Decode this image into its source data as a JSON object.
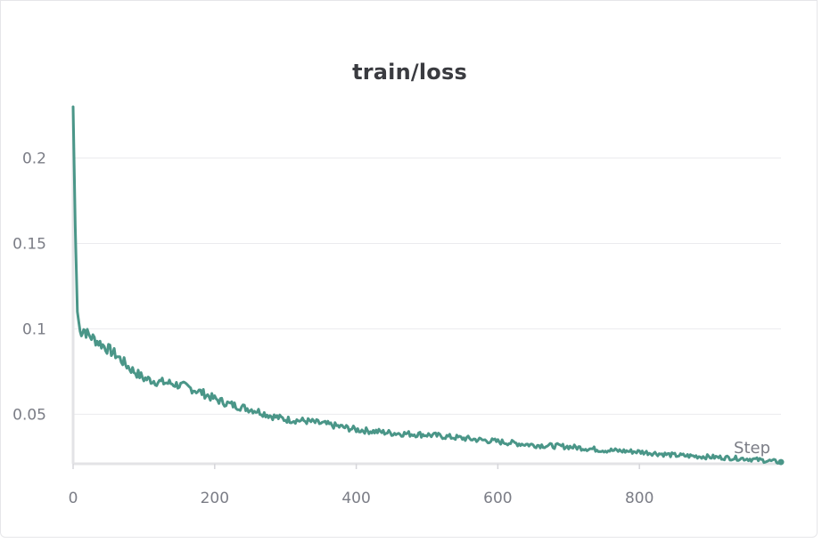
{
  "chart_data": {
    "type": "line",
    "title": "train/loss",
    "xlabel": "Step",
    "ylabel": "",
    "xlim": [
      0,
      1000
    ],
    "ylim": [
      0.021,
      0.23
    ],
    "x_ticks": [
      0,
      200,
      400,
      600,
      800
    ],
    "y_ticks": [
      0.05,
      0.1,
      0.15,
      0.2
    ],
    "y_tick_labels": [
      "0.05",
      "0.1",
      "0.15",
      "0.2"
    ],
    "x_tick_labels": [
      "0",
      "200",
      "400",
      "600",
      "800"
    ],
    "grid": true,
    "legend": "none",
    "series": [
      {
        "color": "#4a9688",
        "x": [
          0,
          3,
          6,
          10,
          15,
          20,
          30,
          40,
          50,
          60,
          70,
          80,
          90,
          100,
          120,
          140,
          160,
          180,
          200,
          220,
          240,
          260,
          280,
          300,
          330,
          360,
          400,
          450,
          500,
          550,
          600,
          650,
          700,
          750,
          800,
          850,
          900,
          950,
          1000
        ],
        "values": [
          0.23,
          0.16,
          0.11,
          0.098,
          0.1,
          0.097,
          0.094,
          0.091,
          0.088,
          0.085,
          0.081,
          0.077,
          0.074,
          0.071,
          0.069,
          0.068,
          0.066,
          0.063,
          0.059,
          0.056,
          0.054,
          0.052,
          0.049,
          0.047,
          0.046,
          0.044,
          0.041,
          0.039,
          0.038,
          0.036,
          0.034,
          0.032,
          0.031,
          0.029,
          0.028,
          0.026,
          0.025,
          0.024,
          0.022
        ]
      }
    ]
  }
}
